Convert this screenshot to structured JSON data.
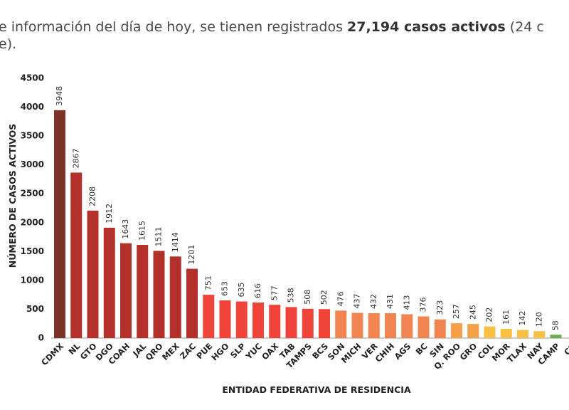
{
  "intro": {
    "line1": [
      "e información del día de hoy, se tienen registrados ",
      "27,194 casos activos",
      " (24 c"
    ],
    "line2": "e)."
  },
  "chart_data": {
    "type": "bar",
    "xlabel": "ENTIDAD FEDERATIVA DE RESIDENCIA",
    "ylabel": "NÚMERO DE CASOS ACTIVOS",
    "categories": [
      "CDMX",
      "NL",
      "GTO",
      "DGO",
      "COAH",
      "JAL",
      "QRO",
      "MEX",
      "ZAC",
      "PUE",
      "HGO",
      "SLP",
      "YUC",
      "OAX",
      "TAB",
      "TAMPS",
      "BCS",
      "SON",
      "MICH",
      "VER",
      "CHIH",
      "AGS",
      "BC",
      "SIN",
      "Q. ROO",
      "GRO",
      "COL",
      "MOR",
      "TLAX",
      "NAY",
      "CAMP",
      "CH"
    ],
    "values": [
      3948,
      2867,
      2208,
      1912,
      1643,
      1615,
      1511,
      1414,
      1201,
      751,
      653,
      635,
      616,
      577,
      538,
      508,
      502,
      476,
      437,
      432,
      431,
      413,
      376,
      323,
      257,
      245,
      202,
      161,
      142,
      120,
      58,
      null
    ],
    "colors": [
      "#7a3326",
      "#b3302b",
      "#b3302b",
      "#b3302b",
      "#b3302b",
      "#b3302b",
      "#b3302b",
      "#b3302b",
      "#b3302b",
      "#f0433a",
      "#f0433a",
      "#f0433a",
      "#f0433a",
      "#f0433a",
      "#f0433a",
      "#f0433a",
      "#f0433a",
      "#f08551",
      "#f08551",
      "#f08551",
      "#f08551",
      "#f08551",
      "#f08551",
      "#f08551",
      "#f4a14a",
      "#f4a14a",
      "#f7c044",
      "#f7c044",
      "#f7c044",
      "#f7c044",
      "#6cae4e",
      "#6cae4e"
    ],
    "ylim": [
      0,
      4500
    ],
    "yticks": [
      0,
      500,
      1000,
      1500,
      2000,
      2500,
      3000,
      3500,
      4000,
      4500
    ],
    "grid": false
  }
}
